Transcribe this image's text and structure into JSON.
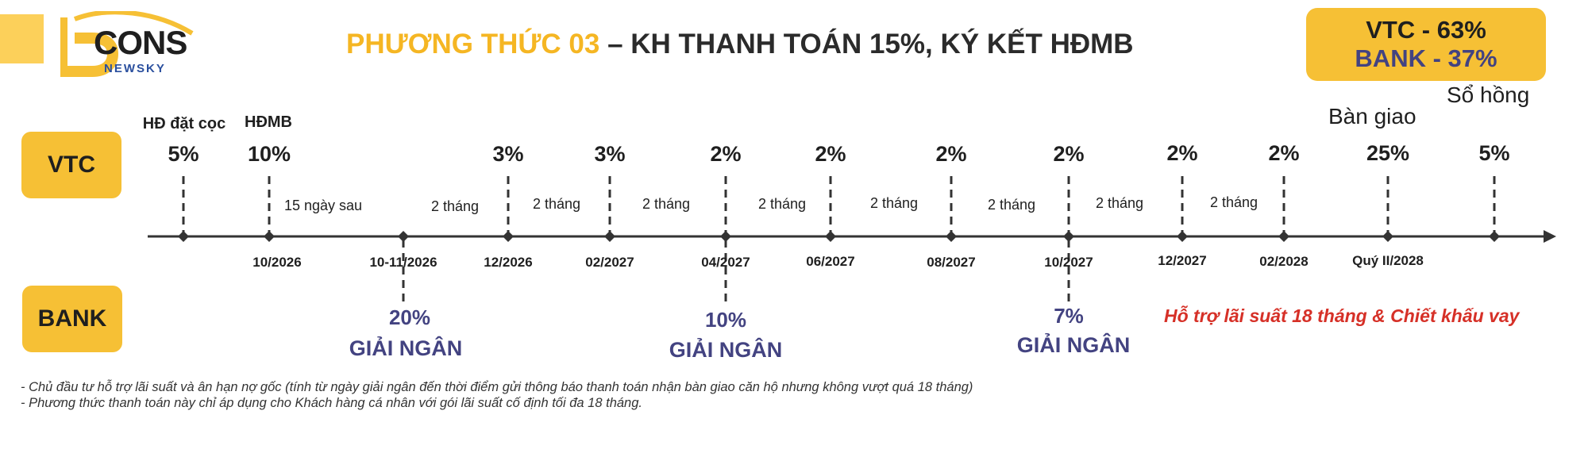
{
  "logo": {
    "word": "CONS",
    "sub": "NEWSKY"
  },
  "title": {
    "accent": "PHƯƠNG THỨC 03",
    "rest": " – KH THANH TOÁN 15%, KÝ KẾT HĐMB"
  },
  "ratio": {
    "vtc": "VTC - 63%",
    "bank": "BANK - 37%"
  },
  "labels": {
    "so_hong": "Sổ hồng",
    "ban_giao": "Bàn giao",
    "vtc": "VTC",
    "bank": "BANK"
  },
  "support_text": "Hỗ trợ lãi suất 18 tháng & Chiết khấu vay",
  "notes": [
    "- Chủ đầu tư hỗ trợ lãi suất và ân hạn nợ gốc (tính từ ngày giải ngân đến thời điểm gửi thông báo thanh toán nhận bàn giao căn hộ nhưng không vượt quá 18 tháng)",
    "- Phương thức thanh toán này chỉ áp dụng cho Khách hàng cá nhân với gói lãi suất cố định tối đa 18 tháng."
  ],
  "timeline": {
    "milestones": [
      {
        "above": "HĐ đặt cọc",
        "pct": "5%",
        "date": ""
      },
      {
        "above": "HĐMB",
        "pct": "10%",
        "date": "10/2026"
      },
      {
        "pct": "",
        "date": "10-11/2026"
      },
      {
        "pct": "3%",
        "date": "12/2026"
      },
      {
        "pct": "3%",
        "date": "02/2027"
      },
      {
        "pct": "2%",
        "date": "04/2027"
      },
      {
        "pct": "2%",
        "date": "06/2027"
      },
      {
        "pct": "2%",
        "date": "08/2027"
      },
      {
        "pct": "2%",
        "date": "10/2027"
      },
      {
        "pct": "2%",
        "date": "12/2027"
      },
      {
        "pct": "2%",
        "date": "02/2028"
      },
      {
        "pct": "25%",
        "date": "Quý II/2028"
      },
      {
        "pct": "5%",
        "date": ""
      }
    ],
    "intervals": [
      "15 ngày sau",
      "2 tháng",
      "2 tháng",
      "2 tháng",
      "2 tháng",
      "2 tháng",
      "2 tháng",
      "2 tháng",
      "2 tháng"
    ],
    "disbursements": [
      {
        "pct": "20%",
        "label": "GIẢI NGÂN"
      },
      {
        "pct": "10%",
        "label": "GIẢI NGÂN"
      },
      {
        "pct": "7%",
        "label": "GIẢI NGÂN"
      }
    ]
  },
  "colors": {
    "yellow": "#f6c035",
    "navy": "#434381",
    "red": "#d63027",
    "dark": "#2b2b2b"
  }
}
